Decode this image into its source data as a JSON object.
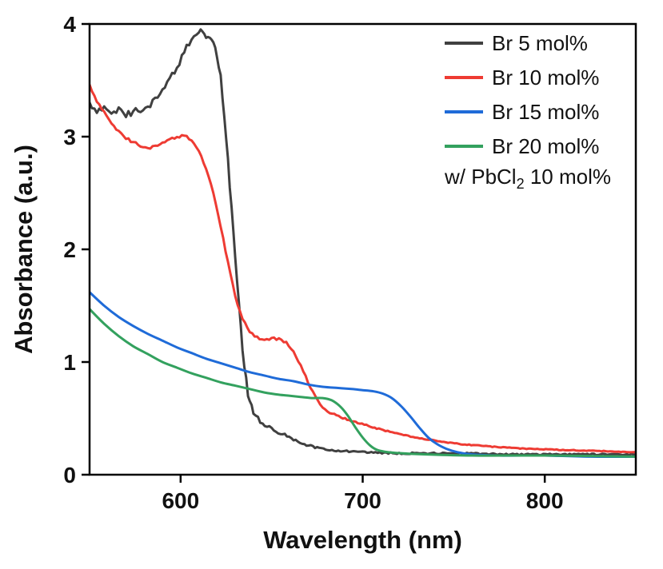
{
  "figure": {
    "background": "#ffffff",
    "axis_color": "#000000"
  },
  "legend": {
    "note": {
      "prefix": "w/ PbCl",
      "sub": "2",
      "suffix": " 10 mol%"
    }
  },
  "chart_data": {
    "type": "line",
    "title": "",
    "xlabel": "Wavelength (nm)",
    "ylabel": "Absorbance (a.u.)",
    "xlim": [
      550,
      850
    ],
    "ylim": [
      0,
      4
    ],
    "xticks": [
      600,
      700,
      800
    ],
    "yticks": [
      0,
      1,
      2,
      3,
      4
    ],
    "grid": false,
    "legend_position": "top-right",
    "series": [
      {
        "name": "Br 5 mol%",
        "color": "#404040",
        "noise": 0.03,
        "points": [
          [
            550,
            3.3
          ],
          [
            554,
            3.24
          ],
          [
            558,
            3.26
          ],
          [
            562,
            3.21
          ],
          [
            566,
            3.23
          ],
          [
            570,
            3.2
          ],
          [
            574,
            3.22
          ],
          [
            578,
            3.24
          ],
          [
            582,
            3.27
          ],
          [
            586,
            3.32
          ],
          [
            590,
            3.4
          ],
          [
            594,
            3.5
          ],
          [
            598,
            3.62
          ],
          [
            602,
            3.75
          ],
          [
            606,
            3.87
          ],
          [
            610,
            3.94
          ],
          [
            613,
            3.9
          ],
          [
            616,
            3.88
          ],
          [
            619,
            3.82
          ],
          [
            622,
            3.55
          ],
          [
            625,
            3.0
          ],
          [
            628,
            2.35
          ],
          [
            631,
            1.7
          ],
          [
            634,
            1.1
          ],
          [
            637,
            0.72
          ],
          [
            640,
            0.55
          ],
          [
            645,
            0.45
          ],
          [
            650,
            0.41
          ],
          [
            656,
            0.36
          ],
          [
            662,
            0.31
          ],
          [
            668,
            0.27
          ],
          [
            675,
            0.24
          ],
          [
            682,
            0.22
          ],
          [
            690,
            0.21
          ],
          [
            700,
            0.2
          ],
          [
            720,
            0.19
          ],
          [
            750,
            0.19
          ],
          [
            780,
            0.18
          ],
          [
            810,
            0.18
          ],
          [
            850,
            0.18
          ]
        ]
      },
      {
        "name": "Br 10 mol%",
        "color": "#ee3b33",
        "noise": 0.012,
        "points": [
          [
            550,
            3.46
          ],
          [
            554,
            3.32
          ],
          [
            558,
            3.22
          ],
          [
            562,
            3.12
          ],
          [
            566,
            3.04
          ],
          [
            570,
            2.99
          ],
          [
            574,
            2.95
          ],
          [
            578,
            2.92
          ],
          [
            582,
            2.9
          ],
          [
            586,
            2.91
          ],
          [
            590,
            2.94
          ],
          [
            594,
            2.97
          ],
          [
            598,
            3.0
          ],
          [
            602,
            3.01
          ],
          [
            606,
            2.97
          ],
          [
            610,
            2.88
          ],
          [
            614,
            2.72
          ],
          [
            618,
            2.5
          ],
          [
            622,
            2.2
          ],
          [
            626,
            1.88
          ],
          [
            630,
            1.58
          ],
          [
            634,
            1.38
          ],
          [
            638,
            1.27
          ],
          [
            642,
            1.22
          ],
          [
            646,
            1.2
          ],
          [
            650,
            1.21
          ],
          [
            654,
            1.2
          ],
          [
            658,
            1.17
          ],
          [
            662,
            1.1
          ],
          [
            666,
            0.97
          ],
          [
            670,
            0.82
          ],
          [
            674,
            0.69
          ],
          [
            678,
            0.6
          ],
          [
            682,
            0.55
          ],
          [
            688,
            0.51
          ],
          [
            695,
            0.47
          ],
          [
            702,
            0.44
          ],
          [
            710,
            0.4
          ],
          [
            720,
            0.36
          ],
          [
            730,
            0.33
          ],
          [
            740,
            0.3
          ],
          [
            755,
            0.27
          ],
          [
            770,
            0.25
          ],
          [
            790,
            0.23
          ],
          [
            810,
            0.22
          ],
          [
            830,
            0.21
          ],
          [
            850,
            0.2
          ]
        ]
      },
      {
        "name": "Br 15 mol%",
        "color": "#1f6bd8",
        "noise": 0,
        "points": [
          [
            550,
            1.62
          ],
          [
            558,
            1.5
          ],
          [
            566,
            1.4
          ],
          [
            574,
            1.32
          ],
          [
            582,
            1.25
          ],
          [
            590,
            1.19
          ],
          [
            598,
            1.13
          ],
          [
            606,
            1.08
          ],
          [
            614,
            1.03
          ],
          [
            622,
            0.99
          ],
          [
            630,
            0.95
          ],
          [
            638,
            0.91
          ],
          [
            646,
            0.88
          ],
          [
            654,
            0.85
          ],
          [
            662,
            0.83
          ],
          [
            670,
            0.8
          ],
          [
            678,
            0.78
          ],
          [
            686,
            0.77
          ],
          [
            694,
            0.76
          ],
          [
            700,
            0.75
          ],
          [
            706,
            0.74
          ],
          [
            711,
            0.72
          ],
          [
            716,
            0.68
          ],
          [
            721,
            0.61
          ],
          [
            726,
            0.52
          ],
          [
            731,
            0.42
          ],
          [
            736,
            0.33
          ],
          [
            741,
            0.27
          ],
          [
            746,
            0.23
          ],
          [
            752,
            0.2
          ],
          [
            760,
            0.18
          ],
          [
            775,
            0.17
          ],
          [
            800,
            0.17
          ],
          [
            825,
            0.16
          ],
          [
            850,
            0.16
          ]
        ]
      },
      {
        "name": "Br 20 mol%",
        "color": "#33a15e",
        "noise": 0,
        "points": [
          [
            550,
            1.47
          ],
          [
            558,
            1.34
          ],
          [
            566,
            1.23
          ],
          [
            574,
            1.14
          ],
          [
            582,
            1.07
          ],
          [
            590,
            1.0
          ],
          [
            598,
            0.95
          ],
          [
            606,
            0.9
          ],
          [
            614,
            0.86
          ],
          [
            622,
            0.82
          ],
          [
            630,
            0.79
          ],
          [
            638,
            0.76
          ],
          [
            646,
            0.73
          ],
          [
            654,
            0.71
          ],
          [
            660,
            0.7
          ],
          [
            666,
            0.69
          ],
          [
            672,
            0.68
          ],
          [
            678,
            0.68
          ],
          [
            683,
            0.66
          ],
          [
            688,
            0.6
          ],
          [
            692,
            0.52
          ],
          [
            696,
            0.42
          ],
          [
            700,
            0.33
          ],
          [
            704,
            0.26
          ],
          [
            708,
            0.22
          ],
          [
            714,
            0.2
          ],
          [
            722,
            0.19
          ],
          [
            735,
            0.18
          ],
          [
            760,
            0.17
          ],
          [
            800,
            0.17
          ],
          [
            850,
            0.16
          ]
        ]
      }
    ]
  }
}
